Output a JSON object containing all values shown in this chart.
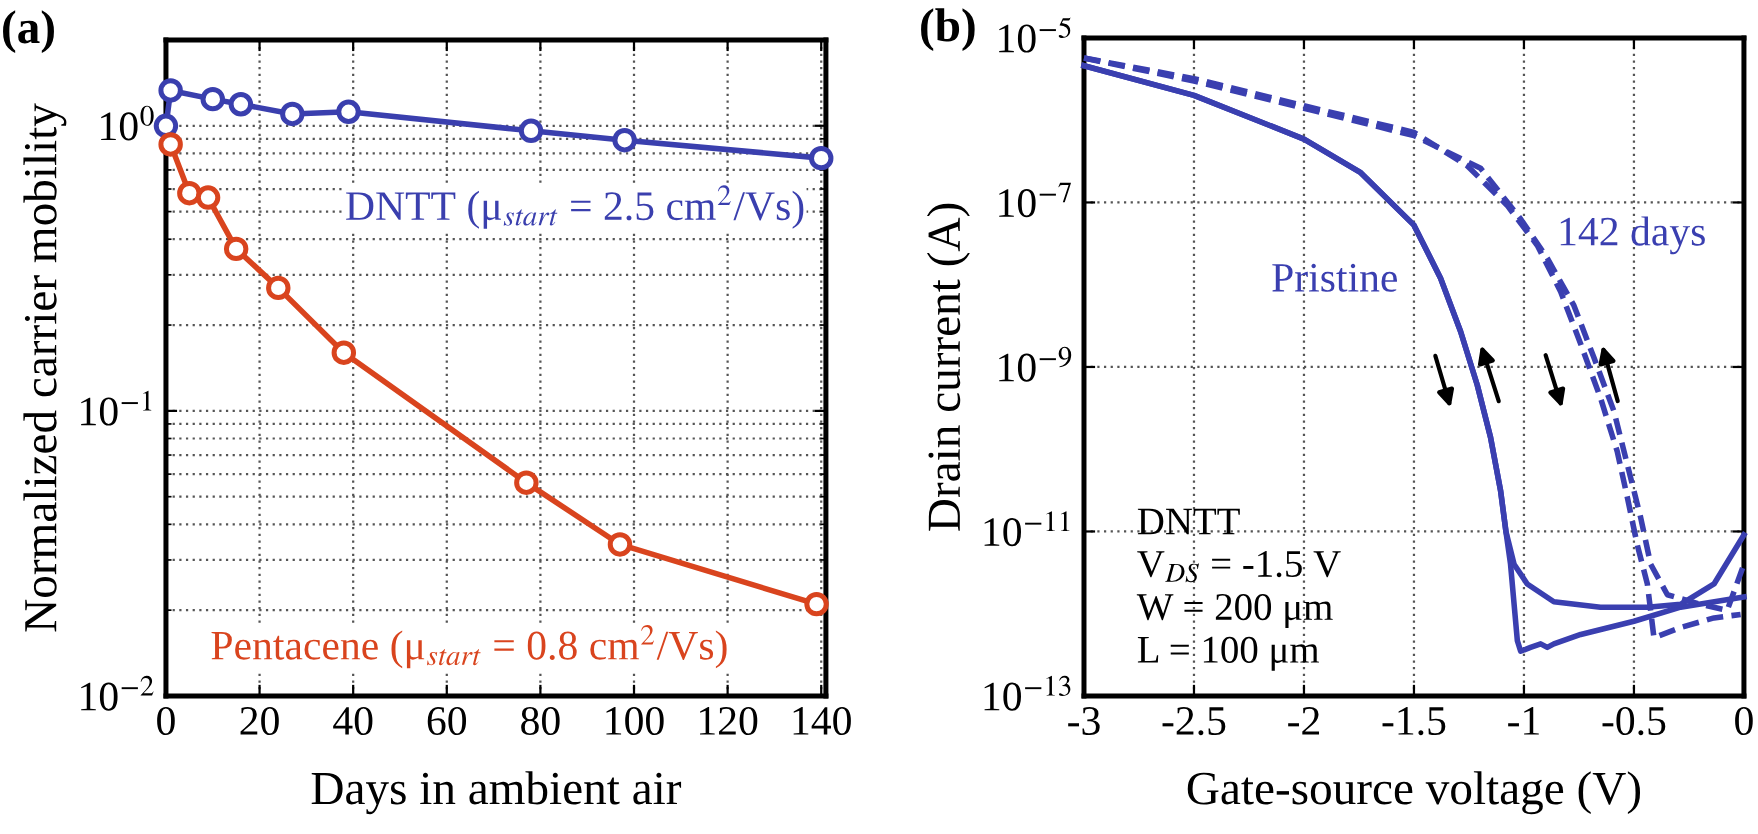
{
  "chart_data": [
    {
      "type": "line",
      "title": "(a)",
      "xlabel": "Days in ambient air",
      "ylabel": "Normalized carrier mobility",
      "log": "y",
      "grid": true,
      "marker": "circle",
      "xlim": [
        0,
        141
      ],
      "xticks": [
        0,
        20,
        40,
        60,
        80,
        100,
        120,
        140
      ],
      "ylim": [
        0.01,
        2
      ],
      "yticks": [
        {
          "value": 0.01,
          "label": "10$^{−2}$"
        },
        {
          "value": 0.1,
          "label": "10$^{−1}$"
        },
        {
          "value": 1,
          "label": "10$^{0}$"
        }
      ],
      "series": [
        {
          "name": "DNTT (μ$_{start}$ = 2.5 cm$^{2}$/Vs)",
          "color": "#3a3fae",
          "x": [
            0,
            1,
            10,
            16,
            27,
            39,
            78,
            98,
            140
          ],
          "values": [
            1.0,
            1.33,
            1.24,
            1.19,
            1.1,
            1.12,
            0.96,
            0.89,
            0.77
          ]
        },
        {
          "name": "Pentacene (μ$_{start}$ = 0.8 cm$^{2}$/Vs)",
          "color": "#d9441e",
          "x": [
            1,
            5,
            9,
            15,
            24,
            38,
            77,
            97,
            139
          ],
          "values": [
            0.86,
            0.58,
            0.56,
            0.37,
            0.27,
            0.16,
            0.056,
            0.034,
            0.021
          ]
        }
      ]
    },
    {
      "type": "line",
      "title": "(b)",
      "xlabel": "Gate-source voltage (V)",
      "ylabel": "Drain current (A)",
      "log": "y",
      "grid": true,
      "xlim": [
        -3,
        0
      ],
      "xticks": [
        -3,
        -2.5,
        -2,
        -1.5,
        -1,
        -0.5,
        0
      ],
      "ylim": [
        1e-13,
        1e-05
      ],
      "yticks": [
        {
          "value": 1e-13,
          "label": "10$^{−13}$"
        },
        {
          "value": 1e-11,
          "label": "10$^{−11}$"
        },
        {
          "value": 1e-09,
          "label": "10$^{−9}$"
        },
        {
          "value": 1e-07,
          "label": "10$^{−7}$"
        },
        {
          "value": 1e-05,
          "label": "10$^{−5}$"
        }
      ],
      "annotations": [
        "DNTT",
        "V$_{DS}$ = -1.5 V",
        "W = 200 μm",
        "L = 100 μm"
      ],
      "series": [
        {
          "name": "Pristine",
          "color": "#3a3fb0",
          "line_style": "solid",
          "x": [
            -3,
            -2.5,
            -2,
            -1.742,
            -1.5,
            -1.379,
            -1.288,
            -1.212,
            -1.152,
            -1.106,
            -1.082,
            -1.061,
            -1.03,
            -1.015,
            -0.97,
            -0.924,
            -0.894,
            -0.864,
            -0.742,
            -0.5,
            -0.288,
            0
          ],
          "values": [
            4.6e-06,
            2e-06,
            5.9e-07,
            2.3e-07,
            5.3e-08,
            1.2e-08,
            2.7e-09,
            6e-10,
            1.4e-10,
            3.1e-11,
            1e-11,
            4e-12,
            4.7e-13,
            3.5e-13,
            3.9e-13,
            4.3e-13,
            3.9e-13,
            4.3e-13,
            5.6e-13,
            8.1e-13,
            1.2e-12,
            1.6e-12
          ]
        },
        {
          "color": "#3a3fb0",
          "line_style": "solid",
          "x": [
            -3,
            -2.5,
            -2,
            -1.742,
            -1.5,
            -1.379,
            -1.288,
            -1.212,
            -1.152,
            -1.106,
            -1.082,
            -1.045,
            -0.985,
            -0.864,
            -0.652,
            -0.439,
            -0.288,
            -0.136,
            0
          ],
          "values": [
            4.6e-06,
            2e-06,
            5.9e-07,
            2.3e-07,
            5.3e-08,
            1.2e-08,
            2.7e-09,
            6e-10,
            1.4e-10,
            3.1e-11,
            1e-11,
            4e-12,
            2.3e-12,
            1.4e-12,
            1.2e-12,
            1.2e-12,
            1.3e-12,
            2.3e-12,
            9.1e-12
          ]
        },
        {
          "name": "142 days",
          "color": "#3a3fb0",
          "line_style": "dashed",
          "x": [
            -3,
            -2.5,
            -2,
            -1.5,
            -1.258,
            -1.076,
            -0.939,
            -0.833,
            -0.742,
            -0.652,
            -0.576,
            -0.53,
            -0.485,
            -0.439,
            -0.409,
            -0.288,
            -0.136,
            -0.015
          ],
          "values": [
            5.7e-06,
            3.2e-06,
            1.5e-06,
            7.1e-07,
            2.8e-07,
            9.2e-08,
            3e-08,
            8.2e-09,
            1.9e-09,
            4.2e-10,
            9.4e-11,
            2.6e-11,
            6.9e-12,
            2.3e-12,
            5.1e-13,
            6.8e-13,
            8.9e-13,
            9.8e-13
          ]
        },
        {
          "color": "#3a3fb0",
          "line_style": "dashed",
          "x": [
            -3,
            -2.5,
            -2,
            -1.5,
            -1.197,
            -1.015,
            -0.894,
            -0.773,
            -0.682,
            -0.591,
            -0.53,
            -0.47,
            -0.424,
            -0.348,
            -0.197,
            -0.076,
            0
          ],
          "values": [
            5.7e-06,
            3e-06,
            1.4e-06,
            6.5e-07,
            2.6e-07,
            6.3e-08,
            2.1e-08,
            5.6e-09,
            1.3e-09,
            2.9e-10,
            6.5e-11,
            1.5e-11,
            4e-12,
            1.7e-12,
            1.3e-12,
            1.1e-12,
            4e-12
          ]
        }
      ]
    }
  ]
}
